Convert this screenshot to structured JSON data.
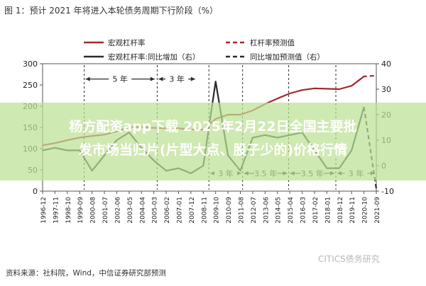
{
  "figure_title": "图 1：预计 2021 年将进入本轮债务周期下行阶段（%）",
  "source": "资料来源：社科院，Wind，中信证券研究部预测",
  "overlay_text": [
    "杨方配资app下载 2025年2月22日全国主要批",
    "发市场当归片(片型大点、股子少的)价格行情"
  ],
  "watermark": "CITICS债务研究",
  "colors": {
    "leverage": "#a6282c",
    "yoy": "#2b2b2b",
    "cycle_marker": "#3a8a4f",
    "banner": "#bce094"
  },
  "chart_data": {
    "type": "line",
    "title": "",
    "x_tick_labels": [
      "1996-12",
      "1997-11",
      "1998-10",
      "1999-09",
      "2000-08",
      "2001-07",
      "2002-06",
      "2003-05",
      "2004-04",
      "2005-03",
      "2006-02",
      "2007-01",
      "2007-12",
      "2008-11",
      "2009-10",
      "2010-09",
      "2011-08",
      "2012-07",
      "2013-06",
      "2014-05",
      "2015-04",
      "2016-03",
      "2017-02",
      "2018-01",
      "2018-12",
      "2019-11",
      "2020-10",
      "2021-09"
    ],
    "y_left": {
      "ylim": [
        0,
        300
      ],
      "ticks": [
        0,
        50,
        100,
        150,
        200,
        250,
        300
      ]
    },
    "y_right": {
      "ylim": [
        -10,
        40
      ],
      "ticks": [
        -10,
        0,
        10,
        20,
        30,
        40
      ]
    },
    "legend": {
      "position": "top",
      "entries": [
        "宏观杠杆率",
        "宏观杠杆率:同比增加（右）",
        "杠杆率预测值",
        "同比增加预测值（右）"
      ]
    },
    "series": [
      {
        "name": "宏观杠杆率",
        "axis": "left",
        "style": "solid",
        "points": [
          [
            "1996-12",
            108
          ],
          [
            "1997-11",
            113
          ],
          [
            "1998-10",
            120
          ],
          [
            "1999-09",
            126
          ],
          [
            "2000-08",
            130
          ],
          [
            "2001-07",
            133
          ],
          [
            "2002-06",
            141
          ],
          [
            "2003-05",
            151
          ],
          [
            "2004-04",
            151
          ],
          [
            "2005-03",
            149
          ],
          [
            "2006-02",
            148
          ],
          [
            "2007-01",
            148
          ],
          [
            "2007-12",
            145
          ],
          [
            "2008-11",
            145
          ],
          [
            "2009-10",
            170
          ],
          [
            "2010-09",
            180
          ],
          [
            "2011-08",
            180
          ],
          [
            "2012-07",
            190
          ],
          [
            "2013-06",
            205
          ],
          [
            "2014-05",
            218
          ],
          [
            "2015-04",
            230
          ],
          [
            "2016-03",
            238
          ],
          [
            "2017-02",
            242
          ],
          [
            "2018-01",
            241
          ],
          [
            "2018-12",
            240
          ],
          [
            "2019-11",
            248
          ],
          [
            "2020-10",
            270
          ]
        ]
      },
      {
        "name": "杠杆率预测值",
        "axis": "left",
        "style": "dashed",
        "points": [
          [
            "2019-11",
            248
          ],
          [
            "2020-10",
            270
          ],
          [
            "2021-09",
            272
          ]
        ]
      },
      {
        "name": "宏观杠杆率:同比增加（右）",
        "axis": "right",
        "style": "solid",
        "points": [
          [
            "1996-12",
            6
          ],
          [
            "1997-11",
            7
          ],
          [
            "1998-10",
            6
          ],
          [
            "1999-09",
            6
          ],
          [
            "2000-08",
            -2
          ],
          [
            "2001-07",
            4
          ],
          [
            "2002-06",
            10
          ],
          [
            "2003-05",
            13
          ],
          [
            "2004-04",
            7
          ],
          [
            "2005-03",
            2
          ],
          [
            "2006-02",
            -2
          ],
          [
            "2007-01",
            -1
          ],
          [
            "2007-12",
            -3
          ],
          [
            "2008-11",
            0
          ],
          [
            "2009-10",
            33
          ],
          [
            "2010-09",
            4
          ],
          [
            "2011-08",
            -2
          ],
          [
            "2012-07",
            11
          ],
          [
            "2013-06",
            12
          ],
          [
            "2014-05",
            11
          ],
          [
            "2015-04",
            12
          ],
          [
            "2016-03",
            13
          ],
          [
            "2017-02",
            6
          ],
          [
            "2018-01",
            -1
          ],
          [
            "2018-12",
            -1
          ],
          [
            "2019-11",
            6
          ],
          [
            "2020-10",
            23
          ]
        ]
      },
      {
        "name": "同比增加预测值（右）",
        "axis": "right",
        "style": "dashed",
        "points": [
          [
            "2020-10",
            23
          ],
          [
            "2021-09",
            -9
          ]
        ]
      }
    ],
    "annotations": [
      {
        "label": "5 年",
        "from": "2000-01",
        "to": "2005-05",
        "y_right": 34
      },
      {
        "label": "3 年",
        "from": "2005-06",
        "to": "2008-05",
        "y_right": 34
      },
      {
        "label": "3 年",
        "from": "2009-04",
        "to": "2011-10",
        "y_right": -3
      },
      {
        "label": "3.5 年",
        "from": "2011-10",
        "to": "2015-03",
        "y_right": -3
      },
      {
        "label": "3.5 年",
        "from": "2015-03",
        "to": "2018-09",
        "y_right": -3
      },
      {
        "label": "3 年",
        "from": "2018-09",
        "to": "2021-09",
        "y_right": -3
      }
    ]
  }
}
